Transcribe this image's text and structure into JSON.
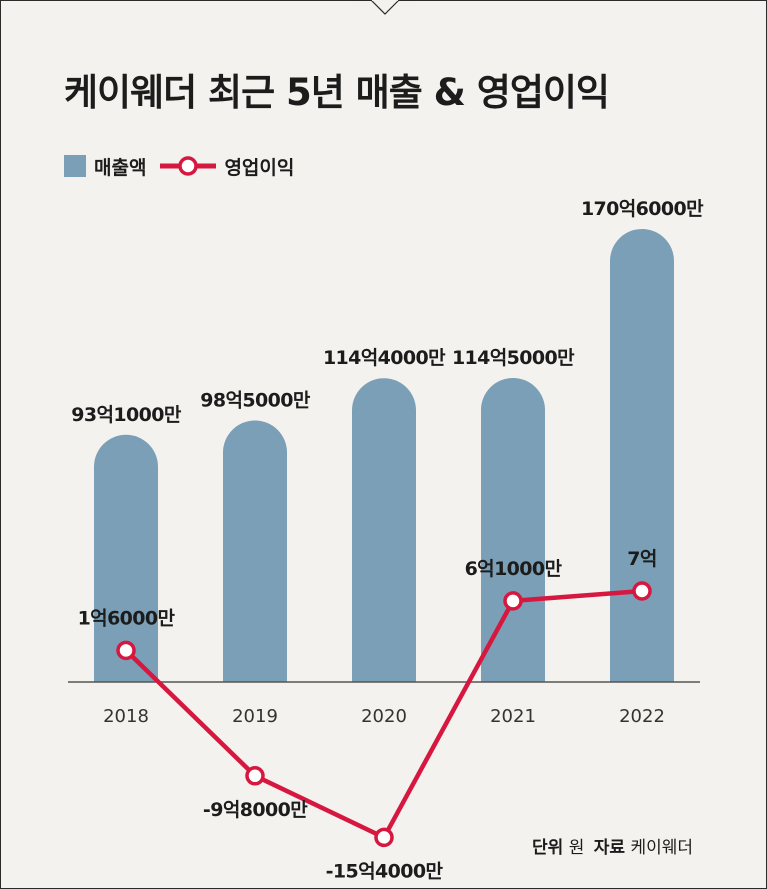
{
  "chart_data": {
    "type": "bar+line",
    "title": "케이웨더 최근 5년 매출 & 영업이익",
    "categories": [
      "2018",
      "2019",
      "2020",
      "2021",
      "2022"
    ],
    "series": [
      {
        "name": "매출액",
        "kind": "bar",
        "values": [
          9310000000,
          9850000000,
          11440000000,
          11450000000,
          17060000000
        ],
        "labels": [
          "93억1000만",
          "98억5000만",
          "114억4000만",
          "114억5000만",
          "170억6000만"
        ],
        "color": "#7a9fb6"
      },
      {
        "name": "영업이익",
        "kind": "line",
        "values": [
          160000000,
          -980000000,
          -1540000000,
          610000000,
          700000000
        ],
        "labels": [
          "1억6000만",
          "-9억8000만",
          "-15억4000만",
          "6억1000만",
          "7억"
        ],
        "color": "#d6173f"
      }
    ],
    "xlabel": "",
    "ylabel": "",
    "grid": false,
    "legend_position": "top-left"
  },
  "footer": {
    "unit_label": "단위",
    "unit_value": "원",
    "source_label": "자료",
    "source_value": "케이웨더"
  }
}
